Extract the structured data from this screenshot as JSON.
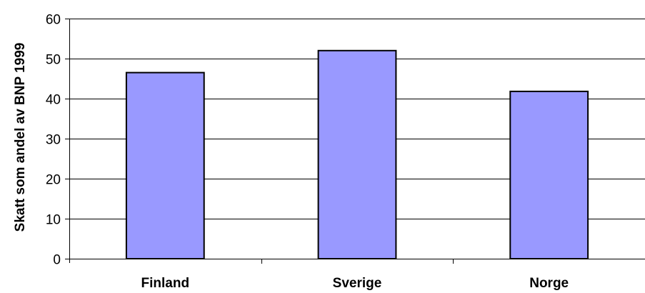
{
  "chart_data": {
    "type": "bar",
    "title": "",
    "xlabel": "",
    "ylabel": "Skatt som andel av BNP 1999",
    "categories": [
      "Finland",
      "Sverige",
      "Norge"
    ],
    "values": [
      46.5,
      52,
      41.8
    ],
    "ylim": [
      0,
      60
    ],
    "yticks": [
      0,
      10,
      20,
      30,
      40,
      50,
      60
    ],
    "grid": true,
    "legend": "none",
    "colors": {
      "bar_fill": "#9999ff",
      "bar_stroke": "#000000",
      "gridline": "#000000",
      "axis": "#000000",
      "background": "#ffffff"
    }
  }
}
